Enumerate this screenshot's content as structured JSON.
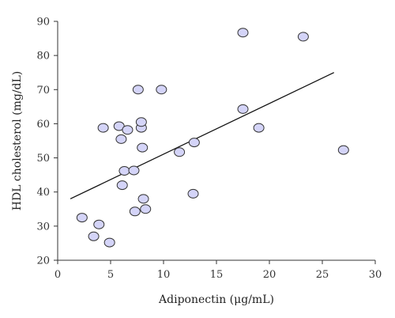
{
  "chart_data": {
    "type": "scatter",
    "title": "",
    "xlabel": "Adiponectin (μg/mL)",
    "ylabel": "HDL cholesterol (mg/dL)",
    "xlim": [
      0,
      30
    ],
    "ylim": [
      20,
      90
    ],
    "xticks": [
      0,
      5,
      10,
      15,
      20,
      25,
      30
    ],
    "yticks": [
      20,
      30,
      40,
      50,
      60,
      70,
      80,
      90
    ],
    "grid": false,
    "legend": "none",
    "colors": {
      "marker_fill": "#d4d4f8",
      "marker_stroke": "#333333",
      "line": "#111111",
      "axis": "#333333"
    },
    "series": [
      {
        "points": [
          [
            2.3,
            32.5
          ],
          [
            3.4,
            27.0
          ],
          [
            3.9,
            30.5
          ],
          [
            4.3,
            58.8
          ],
          [
            4.9,
            25.2
          ],
          [
            5.8,
            59.3
          ],
          [
            6.0,
            55.5
          ],
          [
            6.1,
            42.0
          ],
          [
            6.3,
            46.2
          ],
          [
            6.6,
            58.2
          ],
          [
            7.2,
            46.3
          ],
          [
            7.3,
            34.3
          ],
          [
            7.6,
            70.0
          ],
          [
            7.9,
            58.8
          ],
          [
            7.9,
            60.5
          ],
          [
            8.0,
            53.0
          ],
          [
            8.1,
            38.0
          ],
          [
            8.3,
            35.0
          ],
          [
            9.8,
            70.0
          ],
          [
            11.5,
            51.7
          ],
          [
            12.8,
            39.5
          ],
          [
            12.9,
            54.5
          ],
          [
            17.5,
            86.7
          ],
          [
            17.5,
            64.3
          ],
          [
            19.0,
            58.8
          ],
          [
            23.2,
            85.5
          ],
          [
            27.0,
            52.3
          ]
        ]
      }
    ],
    "trendline": {
      "x": [
        1.2,
        26.1
      ],
      "y": [
        38.0,
        75.0
      ]
    }
  }
}
